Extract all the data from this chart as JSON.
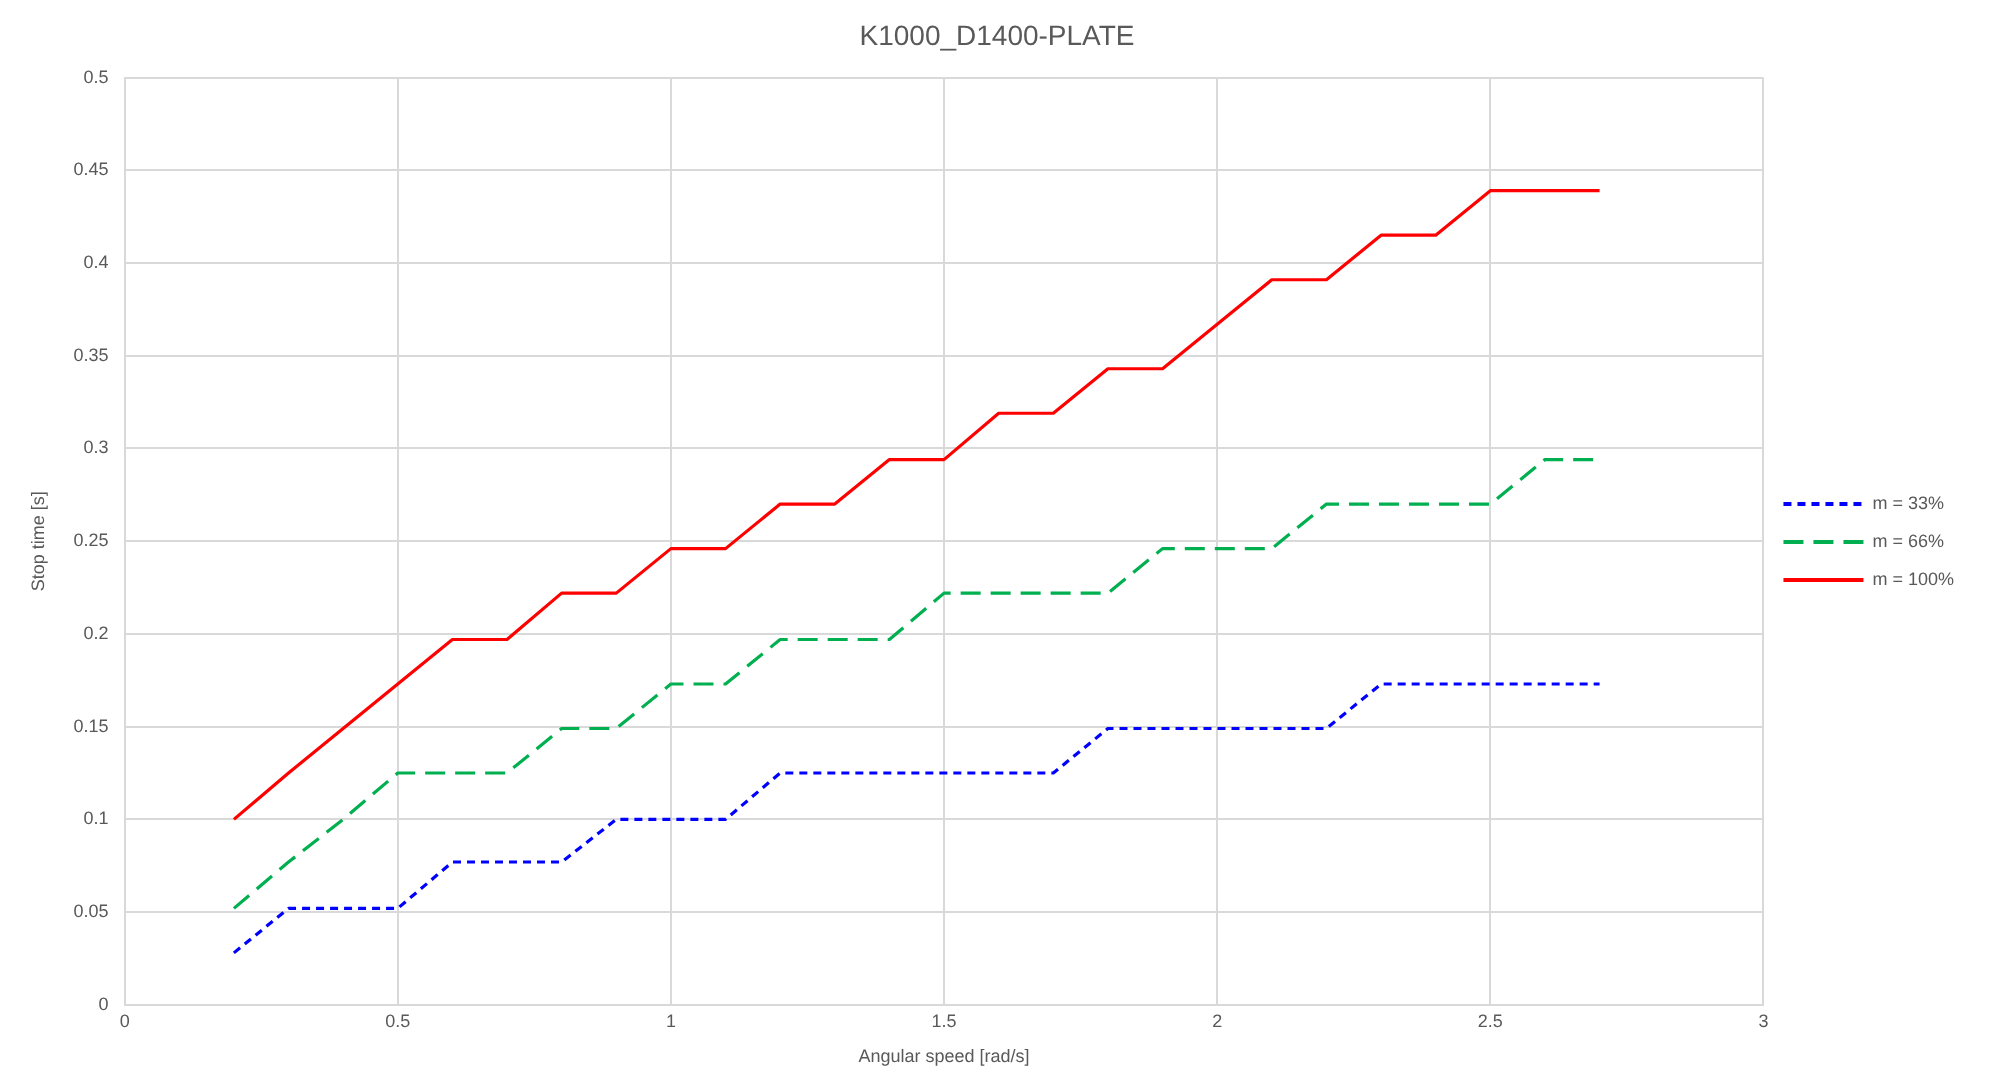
{
  "chart_data": {
    "type": "line",
    "title": "K1000_D1400-PLATE",
    "xlabel": "Angular speed [rad/s]",
    "ylabel": "Stop time [s]",
    "x": [
      0.2,
      0.3,
      0.4,
      0.5,
      0.6,
      0.7,
      0.8,
      0.9,
      1.0,
      1.1,
      1.2,
      1.3,
      1.4,
      1.5,
      1.6,
      1.7,
      1.8,
      1.9,
      2.0,
      2.1,
      2.2,
      2.3,
      2.4,
      2.5,
      2.6,
      2.7
    ],
    "series": [
      {
        "name": "m = 33%",
        "color": "#0000ff",
        "line_style": "dotted",
        "values": [
          0.028,
          0.052,
          0.052,
          0.052,
          0.077,
          0.077,
          0.077,
          0.1,
          0.1,
          0.1,
          0.125,
          0.125,
          0.125,
          0.125,
          0.125,
          0.125,
          0.149,
          0.149,
          0.149,
          0.149,
          0.149,
          0.173,
          0.173,
          0.173,
          0.173,
          0.173
        ]
      },
      {
        "name": "m = 66%",
        "color": "#00b050",
        "line_style": "dashed",
        "values": [
          0.052,
          0.077,
          0.1,
          0.125,
          0.125,
          0.125,
          0.149,
          0.149,
          0.173,
          0.173,
          0.197,
          0.197,
          0.197,
          0.222,
          0.222,
          0.222,
          0.222,
          0.246,
          0.246,
          0.246,
          0.27,
          0.27,
          0.27,
          0.27,
          0.294,
          0.294
        ]
      },
      {
        "name": "m = 100%",
        "color": "#ff0000",
        "line_style": "solid",
        "values": [
          0.1,
          0.125,
          0.149,
          0.173,
          0.197,
          0.197,
          0.222,
          0.222,
          0.246,
          0.246,
          0.27,
          0.27,
          0.294,
          0.294,
          0.319,
          0.319,
          0.343,
          0.343,
          0.367,
          0.391,
          0.391,
          0.415,
          0.415,
          0.439,
          0.439,
          0.439
        ]
      }
    ],
    "xlim": [
      0,
      3
    ],
    "xticks": [
      0,
      0.5,
      1,
      1.5,
      2,
      2.5,
      3
    ],
    "ylim": [
      0,
      0.5
    ],
    "yticks": [
      0,
      0.05,
      0.1,
      0.15,
      0.2,
      0.25,
      0.3,
      0.35,
      0.4,
      0.45,
      0.5
    ],
    "grid": true,
    "legend": "right",
    "marker": "none"
  }
}
